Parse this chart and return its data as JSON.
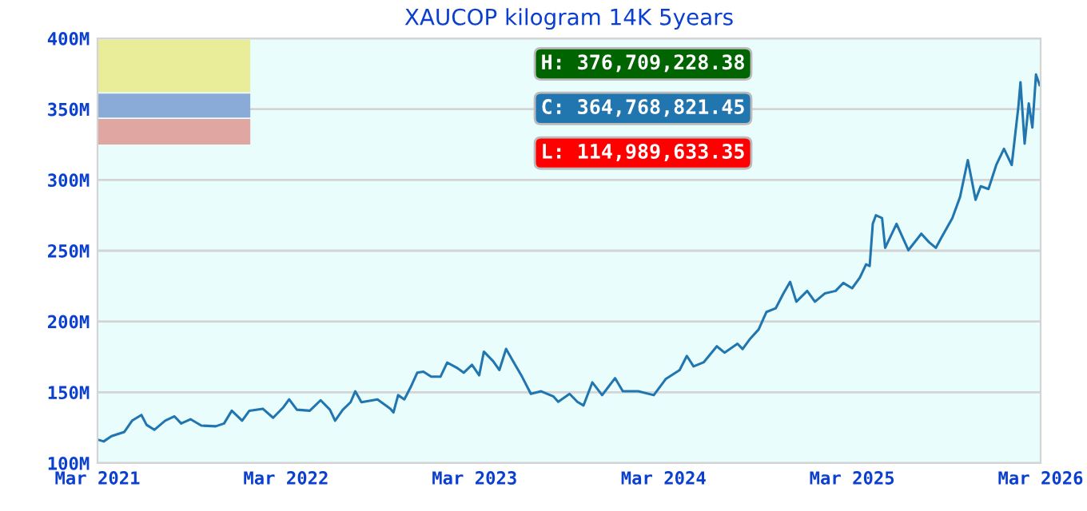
{
  "chart_data": {
    "type": "line",
    "title": "XAUCOP kilogram 14K 5years",
    "annotations": [
      "H: 376,709,228.38",
      "C: 364,768,821.45",
      "L: 114,989,633.35"
    ],
    "x": [
      "2021-03-03",
      "2021-03-13",
      "2021-03-28",
      "2021-04-22",
      "2021-05-07",
      "2021-05-25",
      "2021-06-04",
      "2021-06-19",
      "2021-07-10",
      "2021-07-28",
      "2021-08-10",
      "2021-08-28",
      "2021-09-18",
      "2021-10-16",
      "2021-11-01",
      "2021-11-16",
      "2021-12-06",
      "2021-12-20",
      "2022-01-15",
      "2022-02-04",
      "2022-02-24",
      "2022-03-07",
      "2022-03-22",
      "2022-04-16",
      "2022-05-07",
      "2022-05-25",
      "2022-06-04",
      "2022-06-19",
      "2022-07-04",
      "2022-07-13",
      "2022-07-25",
      "2022-08-25",
      "2022-09-19",
      "2022-09-25",
      "2022-10-04",
      "2022-10-16",
      "2022-10-28",
      "2022-11-10",
      "2022-11-22",
      "2022-12-07",
      "2022-12-25",
      "2023-01-07",
      "2023-01-25",
      "2023-02-08",
      "2023-02-24",
      "2023-03-10",
      "2023-03-19",
      "2023-04-06",
      "2023-04-18",
      "2023-05-01",
      "2023-05-16",
      "2023-06-01",
      "2023-06-18",
      "2023-07-08",
      "2023-08-01",
      "2023-08-10",
      "2023-09-01",
      "2023-09-16",
      "2023-09-28",
      "2023-10-15",
      "2023-11-03",
      "2023-11-28",
      "2023-12-13",
      "2024-01-12",
      "2024-02-11",
      "2024-03-05",
      "2024-04-01",
      "2024-04-15",
      "2024-04-28",
      "2024-05-18",
      "2024-06-12",
      "2024-06-27",
      "2024-07-22",
      "2024-08-01",
      "2024-08-16",
      "2024-09-01",
      "2024-09-16",
      "2024-10-04",
      "2024-10-19",
      "2024-11-01",
      "2024-11-13",
      "2024-12-04",
      "2024-12-19",
      "2025-01-07",
      "2025-01-28",
      "2025-02-12",
      "2025-03-01",
      "2025-03-16",
      "2025-03-28",
      "2025-04-04",
      "2025-04-10",
      "2025-04-16",
      "2025-04-28",
      "2025-05-04",
      "2025-05-26",
      "2025-06-18",
      "2025-07-13",
      "2025-07-28",
      "2025-08-10",
      "2025-08-22",
      "2025-09-11",
      "2025-09-26",
      "2025-10-11",
      "2025-10-26",
      "2025-11-05",
      "2025-11-20",
      "2025-12-05",
      "2025-12-20",
      "2026-01-04",
      "2026-01-17",
      "2026-01-21",
      "2026-01-29",
      "2026-02-06",
      "2026-02-13",
      "2026-02-20",
      "2026-02-27"
    ],
    "series": [
      {
        "color": "#2176b0",
        "values": [
          116400000,
          115300000,
          119000000,
          122000000,
          130000000,
          134000000,
          127000000,
          123500000,
          130000000,
          133000000,
          128000000,
          131000000,
          126500000,
          126000000,
          128000000,
          137000000,
          130000000,
          137000000,
          138400000,
          132000000,
          139500000,
          145000000,
          137700000,
          137000000,
          144400000,
          137700000,
          130000000,
          137700000,
          143000000,
          150700000,
          143000000,
          145000000,
          138400000,
          135800000,
          148000000,
          145000000,
          153400000,
          163800000,
          164600000,
          161000000,
          161000000,
          171000000,
          167500000,
          163800000,
          169400000,
          162000000,
          178700000,
          172000000,
          165700000,
          180600000,
          171000000,
          161000000,
          148900000,
          150700000,
          147000000,
          143300000,
          148900000,
          143300000,
          140700000,
          157000000,
          148000000,
          160000000,
          150700000,
          150700000,
          148000000,
          159300000,
          165700000,
          175700000,
          168300000,
          171300000,
          182500000,
          178000000,
          184300000,
          180600000,
          188000000,
          194400000,
          206700000,
          209300000,
          219800000,
          228000000,
          214000000,
          221600000,
          214000000,
          219800000,
          221600000,
          227200000,
          223500000,
          231000000,
          240300000,
          239200000,
          269000000,
          275000000,
          273000000,
          252000000,
          269000000,
          250400000,
          262000000,
          256000000,
          252000000,
          260000000,
          273000000,
          288000000,
          314000000,
          286000000,
          295500000,
          293600000,
          310500000,
          322000000,
          310500000,
          352000000,
          369000000,
          325600000,
          354000000,
          337000000,
          374400000,
          367000000
        ]
      }
    ],
    "xlim": [
      "2021-03-01",
      "2026-03-01"
    ],
    "xticks": [
      {
        "value": "2021-03-01",
        "label": "Mar 2021"
      },
      {
        "value": "2022-03-01",
        "label": "Mar 2022"
      },
      {
        "value": "2023-03-01",
        "label": "Mar 2023"
      },
      {
        "value": "2024-03-01",
        "label": "Mar 2024"
      },
      {
        "value": "2025-03-01",
        "label": "Mar 2025"
      },
      {
        "value": "2026-03-01",
        "label": "Mar 2026"
      }
    ],
    "ylim": [
      100000000,
      400000000
    ],
    "yticks": [
      {
        "value": 100000000,
        "label": "100M"
      },
      {
        "value": 150000000,
        "label": "150M"
      },
      {
        "value": 200000000,
        "label": "200M"
      },
      {
        "value": 250000000,
        "label": "250M"
      },
      {
        "value": 300000000,
        "label": "300M"
      },
      {
        "value": 350000000,
        "label": "350M"
      },
      {
        "value": 400000000,
        "label": "400M"
      }
    ],
    "grid": "y",
    "marker": "none",
    "line_style": "solid",
    "legend": false
  }
}
